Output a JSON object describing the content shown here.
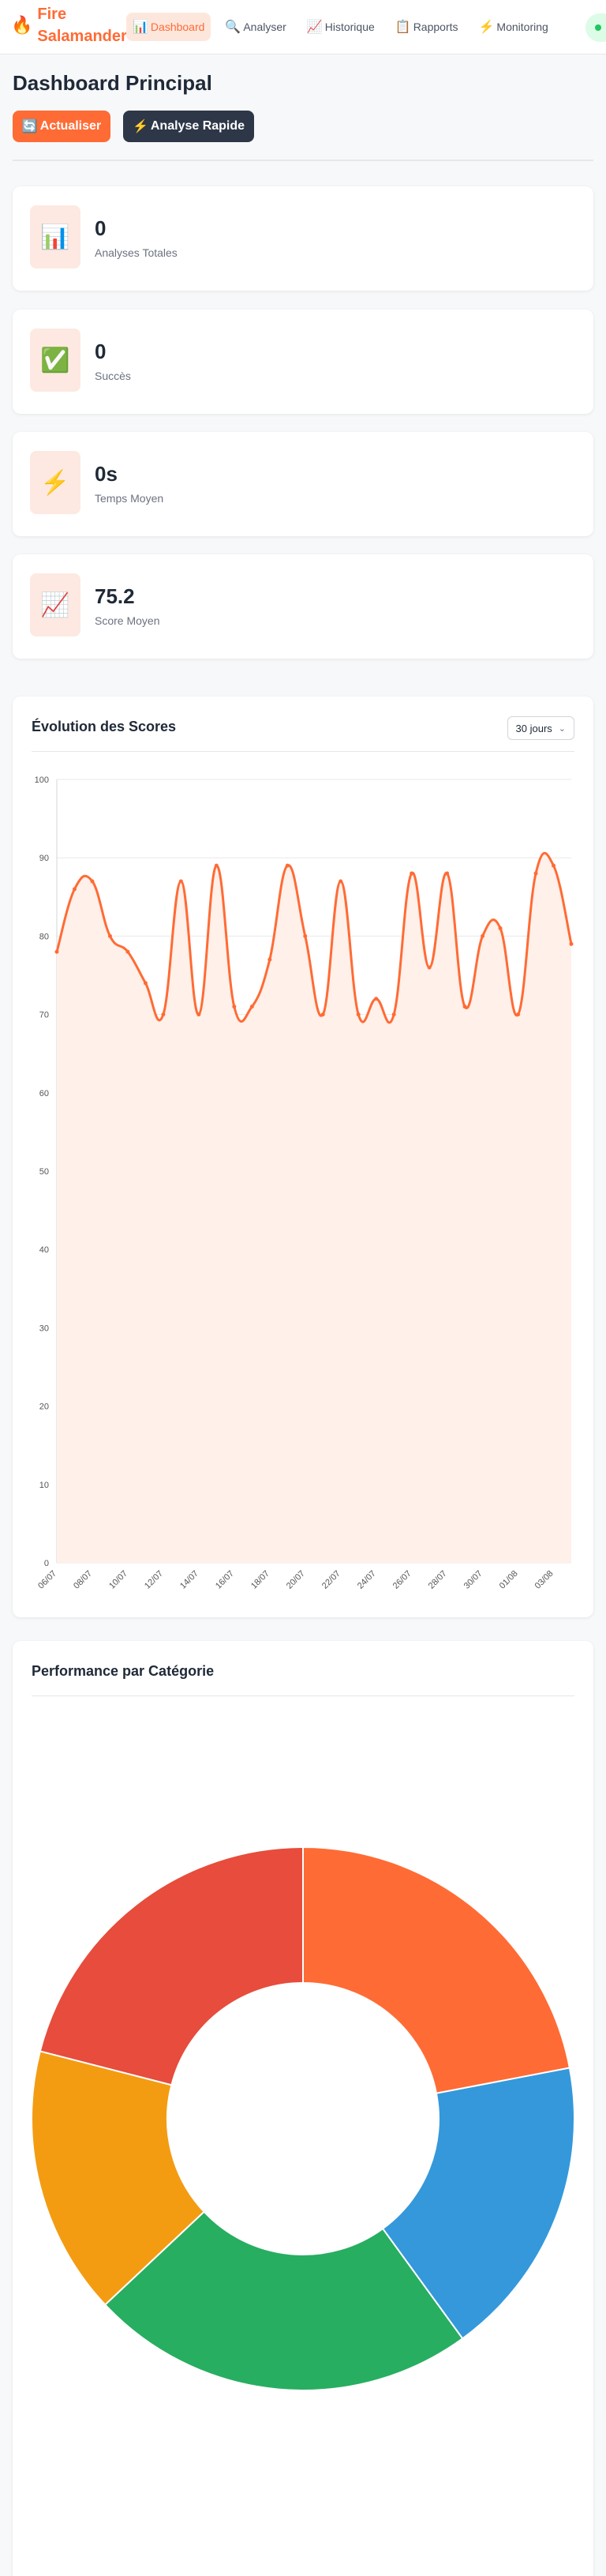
{
  "header": {
    "brand_line1": "Fire",
    "brand_line2": "Salamander",
    "brand_icon": "🔥",
    "nav": [
      {
        "icon": "📊",
        "label": "Dashboard",
        "active": true
      },
      {
        "icon": "🔍",
        "label": "Analyser",
        "active": false
      },
      {
        "icon": "📈",
        "label": "Historique",
        "active": false
      },
      {
        "icon": "📋",
        "label": "Rapports",
        "active": false
      },
      {
        "icon": "⚡",
        "label": "Monitoring",
        "active": false
      }
    ]
  },
  "page": {
    "title": "Dashboard Principal",
    "refresh_icon": "🔄",
    "refresh_label": "Actualiser",
    "quick_icon": "⚡",
    "quick_label": "Analyse Rapide"
  },
  "stats": [
    {
      "icon": "📊",
      "value": "0",
      "label": "Analyses Totales"
    },
    {
      "icon": "✅",
      "value": "0",
      "label": "Succès"
    },
    {
      "icon": "⚡",
      "value": "0s",
      "label": "Temps Moyen"
    },
    {
      "icon": "📈",
      "value": "75.2",
      "label": "Score Moyen"
    }
  ],
  "score_chart": {
    "title": "Évolution des Scores",
    "range_select": "30 jours"
  },
  "category_chart": {
    "title": "Performance par Catégorie"
  },
  "colors": {
    "accent": "#ff6b35",
    "dark": "#2d3748",
    "line": "#ff6b35",
    "fill": "#fff0e9"
  },
  "chart_data": [
    {
      "type": "line",
      "title": "Évolution des Scores",
      "xlabel": "",
      "ylabel": "",
      "ylim": [
        0,
        100
      ],
      "yticks": [
        0,
        10,
        20,
        30,
        40,
        50,
        60,
        70,
        80,
        90,
        100
      ],
      "xtick_labels": [
        "06/07",
        "08/07",
        "10/07",
        "12/07",
        "14/07",
        "16/07",
        "18/07",
        "20/07",
        "22/07",
        "24/07",
        "26/07",
        "28/07",
        "30/07",
        "01/08",
        "03/08"
      ],
      "grid": true,
      "x": [
        "06/07",
        "07/07",
        "08/07",
        "09/07",
        "10/07",
        "11/07",
        "12/07",
        "13/07",
        "14/07",
        "15/07",
        "16/07",
        "17/07",
        "18/07",
        "19/07",
        "20/07",
        "21/07",
        "22/07",
        "23/07",
        "24/07",
        "25/07",
        "26/07",
        "27/07",
        "28/07",
        "29/07",
        "30/07",
        "31/07",
        "01/08",
        "02/08",
        "03/08",
        "04/08"
      ],
      "series": [
        {
          "values": [
            78,
            86,
            87,
            80,
            78,
            74,
            70,
            87,
            70,
            89,
            71,
            71,
            77,
            89,
            80,
            70,
            87,
            70,
            72,
            70,
            88,
            76,
            88,
            71,
            80,
            81,
            70,
            88,
            89,
            79
          ]
        }
      ]
    },
    {
      "type": "pie",
      "title": "Performance par Catégorie",
      "donut": true,
      "legend": "none",
      "values": [
        22,
        18,
        23,
        16,
        21
      ],
      "colors": [
        "#ff6b35",
        "#3498db",
        "#27ae60",
        "#f39c12",
        "#e74c3c"
      ]
    }
  ]
}
